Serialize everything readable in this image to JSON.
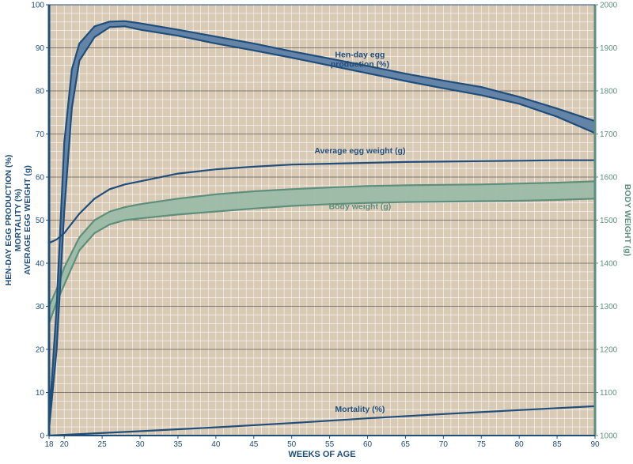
{
  "colors": {
    "plot_bg": "#d9cab6",
    "frame": "#1f4e7a",
    "left_axis": "#1f4e7a",
    "right_axis": "#5e8f7d",
    "green_fill": "#9bbaa7",
    "green_line": "#5e8f7d",
    "blue_line": "#1f4e7a",
    "blue_fill": "#5d7ea6",
    "grid_minor": "#ffffff",
    "grid_major": "#3a3a3a"
  },
  "chart_data": {
    "type": "line",
    "xlabel": "WEEKS OF AGE",
    "ylabel_left": [
      "HEN-DAY EGG PRODUCTION (%)",
      "MORTALITY (%)",
      "AVERAGE EGG WEIGHT (g)"
    ],
    "ylabel_right": "BODY WEIGHT (g)",
    "xlim": [
      18,
      90
    ],
    "ylim_left": [
      0,
      100
    ],
    "ylim_right": [
      1000,
      2000
    ],
    "x_ticks": [
      "18",
      "20",
      "25",
      "30",
      "35",
      "40",
      "45",
      "50",
      "55",
      "60",
      "65",
      "70",
      "75",
      "80",
      "85",
      "90"
    ],
    "y_left_ticks": [
      "0",
      "10",
      "20",
      "30",
      "40",
      "50",
      "60",
      "70",
      "80",
      "90",
      "100"
    ],
    "y_right_ticks": [
      "1000",
      "1100",
      "1200",
      "1300",
      "1400",
      "1500",
      "1600",
      "1700",
      "1800",
      "1900",
      "2000"
    ],
    "grid": true,
    "series": [
      {
        "name": "Hen-day egg production (%)",
        "label_lines": [
          "Hen-day egg",
          "production (%)"
        ],
        "axis": "left",
        "kind": "band",
        "color": "#1f4e7a",
        "fill": "#5d7ea6",
        "upper": [
          [
            18,
            3
          ],
          [
            19,
            30
          ],
          [
            20,
            68
          ],
          [
            21,
            85
          ],
          [
            22,
            91
          ],
          [
            24,
            95
          ],
          [
            26,
            96.1
          ],
          [
            28,
            96.2
          ],
          [
            30,
            95.7
          ],
          [
            35,
            94.2
          ],
          [
            40,
            92.6
          ],
          [
            45,
            91.0
          ],
          [
            50,
            89.2
          ],
          [
            55,
            87.5
          ],
          [
            60,
            85.8
          ],
          [
            65,
            84.0
          ],
          [
            70,
            82.4
          ],
          [
            75,
            80.9
          ],
          [
            80,
            78.6
          ],
          [
            85,
            75.9
          ],
          [
            90,
            73.0
          ]
        ],
        "lower": [
          [
            18,
            1.5
          ],
          [
            19,
            20
          ],
          [
            20,
            52
          ],
          [
            21,
            76
          ],
          [
            22,
            87
          ],
          [
            24,
            92.5
          ],
          [
            26,
            94.8
          ],
          [
            28,
            95.0
          ],
          [
            30,
            94.2
          ],
          [
            35,
            92.8
          ],
          [
            40,
            91.0
          ],
          [
            45,
            89.4
          ],
          [
            50,
            87.7
          ],
          [
            55,
            85.9
          ],
          [
            60,
            84.1
          ],
          [
            65,
            82.3
          ],
          [
            70,
            80.6
          ],
          [
            75,
            79.0
          ],
          [
            80,
            77.0
          ],
          [
            85,
            74.0
          ],
          [
            90,
            70.2
          ]
        ]
      },
      {
        "name": "Average egg weight (g)",
        "label_lines": [
          "Average egg weight (g)"
        ],
        "axis": "left",
        "kind": "line",
        "color": "#1f4e7a",
        "points": [
          [
            18,
            44.7
          ],
          [
            19,
            45.5
          ],
          [
            20,
            47.0
          ],
          [
            22,
            51.5
          ],
          [
            24,
            55.0
          ],
          [
            26,
            57.2
          ],
          [
            28,
            58.3
          ],
          [
            30,
            59.0
          ],
          [
            35,
            60.8
          ],
          [
            40,
            61.8
          ],
          [
            45,
            62.4
          ],
          [
            50,
            62.9
          ],
          [
            55,
            63.1
          ],
          [
            60,
            63.3
          ],
          [
            65,
            63.5
          ],
          [
            70,
            63.6
          ],
          [
            75,
            63.7
          ],
          [
            80,
            63.8
          ],
          [
            85,
            63.9
          ],
          [
            90,
            63.9
          ]
        ]
      },
      {
        "name": "Body weight (g)",
        "label_lines": [
          "Body weight (g)"
        ],
        "axis": "right",
        "kind": "band",
        "color": "#5e8f7d",
        "fill": "#9bbaa7",
        "upper": [
          [
            18,
            1300
          ],
          [
            19,
            1340
          ],
          [
            20,
            1390
          ],
          [
            22,
            1460
          ],
          [
            24,
            1500
          ],
          [
            26,
            1520
          ],
          [
            28,
            1530
          ],
          [
            30,
            1537
          ],
          [
            35,
            1550
          ],
          [
            40,
            1560
          ],
          [
            45,
            1567
          ],
          [
            50,
            1572
          ],
          [
            55,
            1576
          ],
          [
            60,
            1579
          ],
          [
            65,
            1581
          ],
          [
            70,
            1582
          ],
          [
            75,
            1583
          ],
          [
            80,
            1585
          ],
          [
            85,
            1587
          ],
          [
            90,
            1590
          ]
        ],
        "lower": [
          [
            18,
            1260
          ],
          [
            19,
            1310
          ],
          [
            20,
            1350
          ],
          [
            22,
            1430
          ],
          [
            24,
            1470
          ],
          [
            26,
            1490
          ],
          [
            28,
            1500
          ],
          [
            30,
            1504
          ],
          [
            35,
            1513
          ],
          [
            40,
            1520
          ],
          [
            45,
            1527
          ],
          [
            50,
            1533
          ],
          [
            55,
            1537
          ],
          [
            60,
            1540
          ],
          [
            65,
            1542
          ],
          [
            70,
            1543
          ],
          [
            75,
            1544
          ],
          [
            80,
            1545
          ],
          [
            85,
            1547
          ],
          [
            90,
            1550
          ]
        ]
      },
      {
        "name": "Mortality (%)",
        "label_lines": [
          "Mortality (%)"
        ],
        "axis": "left",
        "kind": "line",
        "color": "#1f4e7a",
        "points": [
          [
            18,
            0
          ],
          [
            30,
            1
          ],
          [
            40,
            1.9
          ],
          [
            50,
            2.9
          ],
          [
            60,
            4.0
          ],
          [
            70,
            5.0
          ],
          [
            80,
            5.9
          ],
          [
            90,
            6.8
          ]
        ]
      }
    ]
  }
}
